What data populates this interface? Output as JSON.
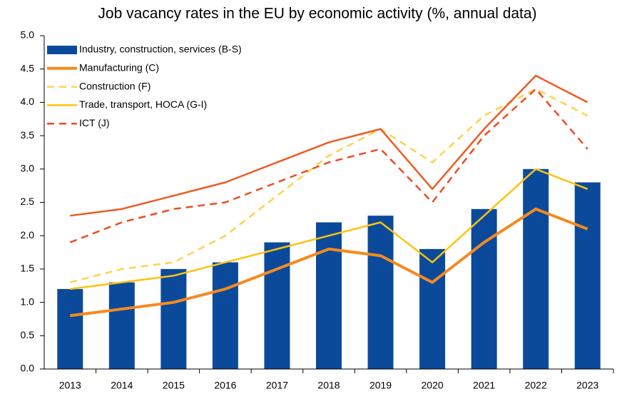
{
  "chart_data": {
    "type": "bar",
    "title": "Job vacancy rates in the EU by economic activity (%, annual data)",
    "categories": [
      "2013",
      "2014",
      "2015",
      "2016",
      "2017",
      "2018",
      "2019",
      "2020",
      "2021",
      "2022",
      "2023"
    ],
    "series": [
      {
        "name": "Industry, construction, services (B-S)",
        "type": "bar",
        "color": "#0b4a9b",
        "values": [
          1.2,
          1.3,
          1.5,
          1.6,
          1.9,
          2.2,
          2.3,
          1.8,
          2.4,
          3.0,
          2.8
        ]
      },
      {
        "name": "Manufacturing (C)",
        "type": "line",
        "style": "solid",
        "line_width": 4,
        "color": "#f58a1f",
        "values": [
          0.8,
          0.9,
          1.0,
          1.2,
          1.5,
          1.8,
          1.7,
          1.3,
          1.9,
          2.4,
          2.1
        ]
      },
      {
        "name": "Construction (F)",
        "type": "line",
        "style": "dashed",
        "line_width": 2.5,
        "color": "#ffd24d",
        "values": [
          1.3,
          1.5,
          1.6,
          2.0,
          2.6,
          3.2,
          3.6,
          3.1,
          3.8,
          4.2,
          3.8
        ]
      },
      {
        "name": "Trade, transport, HOCA (G-I)",
        "type": "line",
        "style": "solid",
        "line_width": 2.5,
        "color": "#ffc20e",
        "values": [
          1.2,
          1.3,
          1.4,
          1.6,
          1.8,
          2.0,
          2.2,
          1.6,
          2.3,
          3.0,
          2.7
        ]
      },
      {
        "name": "ICT (J)",
        "type": "line",
        "style": "dashed",
        "line_width": 2.5,
        "color": "#ef4b23",
        "values": [
          1.9,
          2.2,
          2.4,
          2.5,
          2.8,
          3.1,
          3.3,
          2.5,
          3.5,
          4.2,
          3.3
        ]
      },
      {
        "type": "line",
        "style": "solid",
        "line_width": 2.5,
        "color": "#ee5a24",
        "values": [
          2.3,
          2.4,
          2.6,
          2.8,
          3.1,
          3.4,
          3.6,
          2.7,
          3.6,
          4.4,
          4.0
        ]
      }
    ],
    "ylim": [
      0,
      5
    ],
    "yticks": [
      {
        "value": 0,
        "label": "0.0"
      },
      0.5,
      {
        "value": 1,
        "label": "1.0"
      },
      1.5,
      {
        "value": 2,
        "label": "2.0"
      },
      2.5,
      {
        "value": 3,
        "label": "3.0"
      },
      3.5,
      {
        "value": 4,
        "label": "4.0"
      },
      4.5,
      {
        "value": 5,
        "label": "5.0"
      }
    ],
    "grid": false,
    "legend": "upper-left"
  }
}
